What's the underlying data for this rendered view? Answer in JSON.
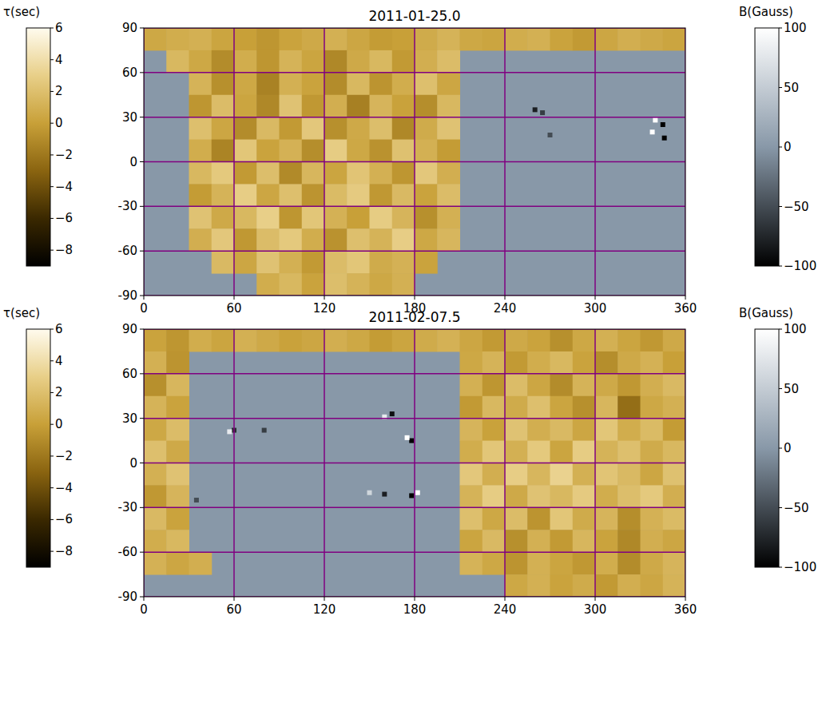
{
  "chart_data": [
    {
      "type": "heatmap",
      "title": "2011-01-25.0",
      "xlim": [
        0,
        360
      ],
      "ylim": [
        -90,
        90
      ],
      "xticks": [
        0,
        60,
        120,
        180,
        240,
        300,
        360
      ],
      "yticks": [
        -90,
        -60,
        -30,
        0,
        30,
        60,
        90
      ],
      "grid": true,
      "x": [
        7.5,
        22.5,
        37.5,
        52.5,
        67.5,
        82.5,
        97.5,
        112.5,
        127.5,
        142.5,
        157.5,
        172.5,
        187.5,
        202.5,
        217.5,
        232.5,
        247.5,
        262.5,
        277.5,
        292.5,
        307.5,
        322.5,
        337.5,
        352.5
      ],
      "y": [
        82.5,
        67.5,
        52.5,
        37.5,
        22.5,
        7.5,
        -7.5,
        -22.5,
        -37.5,
        -52.5,
        -67.5,
        -82.5
      ],
      "cells": [
        [
          0.5,
          0.8,
          1,
          0.3,
          0,
          -0.5,
          0.2,
          0.6,
          1,
          0.4,
          -0.2,
          0,
          0.7,
          1.2,
          0.5,
          0.3,
          0.8,
          1,
          0.2,
          -0.3,
          0.4,
          0.9,
          0.6,
          0.3
        ],
        [
          null,
          1.5,
          0.5,
          -1,
          0.8,
          -0.5,
          1.2,
          0.3,
          -1.2,
          0.6,
          1.5,
          -0.3,
          0.9,
          1.8,
          null,
          null,
          null,
          null,
          null,
          null,
          null,
          null,
          null,
          null
        ],
        [
          null,
          null,
          1.2,
          -0.8,
          0.5,
          -1.5,
          1.0,
          0.2,
          -1.0,
          1.5,
          -0.6,
          0.8,
          2.0,
          0.4,
          null,
          null,
          null,
          null,
          null,
          null,
          null,
          null,
          null,
          null
        ],
        [
          null,
          null,
          -0.5,
          1.8,
          0.3,
          -1.2,
          2.2,
          -0.4,
          0.9,
          -1.6,
          1.3,
          0.1,
          -0.9,
          1.5,
          null,
          null,
          null,
          null,
          null,
          null,
          null,
          null,
          null,
          null
        ],
        [
          null,
          null,
          2.0,
          0.4,
          -1.0,
          1.6,
          -0.3,
          2.5,
          -0.8,
          0.6,
          1.9,
          -1.2,
          0.7,
          2.2,
          null,
          null,
          null,
          null,
          null,
          null,
          null,
          null,
          null,
          null
        ],
        [
          null,
          null,
          0.8,
          -1.4,
          2.4,
          0.2,
          1.1,
          -0.9,
          2.8,
          0.5,
          -0.7,
          2.1,
          1.0,
          -0.2,
          null,
          null,
          null,
          null,
          null,
          null,
          null,
          null,
          null,
          null
        ],
        [
          null,
          null,
          1.5,
          2.6,
          -0.3,
          1.9,
          -1.1,
          1.4,
          0.3,
          2.3,
          1.0,
          -0.5,
          2.5,
          0.9,
          null,
          null,
          null,
          null,
          null,
          null,
          null,
          null,
          null,
          null
        ],
        [
          null,
          null,
          -0.2,
          1.2,
          2.9,
          0.4,
          2.0,
          -0.6,
          1.7,
          2.7,
          -0.4,
          1.6,
          0.2,
          1.8,
          null,
          null,
          null,
          null,
          null,
          null,
          null,
          null,
          null,
          null
        ],
        [
          null,
          null,
          2.2,
          0.6,
          1.5,
          3.0,
          -0.5,
          2.4,
          1.1,
          0.0,
          2.8,
          1.3,
          -0.8,
          1.0,
          null,
          null,
          null,
          null,
          null,
          null,
          null,
          null,
          null,
          null
        ],
        [
          null,
          null,
          0.9,
          2.5,
          -0.4,
          1.8,
          2.6,
          0.8,
          -0.7,
          2.0,
          1.2,
          2.9,
          0.5,
          1.4,
          null,
          null,
          null,
          null,
          null,
          null,
          null,
          null,
          null,
          null
        ],
        [
          null,
          null,
          null,
          1.6,
          0.4,
          2.2,
          1.0,
          -0.3,
          1.8,
          2.4,
          0.7,
          1.1,
          0.2,
          null,
          null,
          null,
          null,
          null,
          null,
          null,
          null,
          null,
          null,
          null
        ],
        [
          null,
          null,
          null,
          null,
          null,
          0.8,
          1.5,
          0.2,
          1.9,
          1.2,
          0.5,
          1.0,
          null,
          null,
          null,
          null,
          null,
          null,
          null,
          null,
          null,
          null,
          null,
          null
        ]
      ],
      "colorbar": {
        "label": "τ(sec)",
        "range": [
          -9,
          6
        ],
        "ticks": [
          {
            "value": -8,
            "label": "−8"
          },
          {
            "value": -6,
            "label": "−6"
          },
          {
            "value": -4,
            "label": "−4"
          },
          {
            "value": -2,
            "label": "−2"
          },
          0,
          2,
          4,
          6
        ]
      },
      "points": {
        "lon": [
          340,
          345,
          346,
          338,
          260,
          265,
          270
        ],
        "lat": [
          28,
          25,
          16,
          20,
          35,
          33,
          18
        ],
        "values": [
          100,
          -100,
          -100,
          100,
          -80,
          -60,
          -50
        ]
      },
      "points_colorbar": {
        "label": "B(Gauss)",
        "range": [
          -100,
          100
        ],
        "ticks": [
          {
            "value": -100,
            "label": "−100"
          },
          {
            "value": -50,
            "label": "−50"
          },
          0,
          50,
          100
        ]
      }
    },
    {
      "type": "heatmap",
      "title": "2011-02-07.5",
      "xlim": [
        0,
        360
      ],
      "ylim": [
        -90,
        90
      ],
      "xticks": [
        0,
        60,
        120,
        180,
        240,
        300,
        360
      ],
      "yticks": [
        -90,
        -60,
        -30,
        0,
        30,
        60,
        90
      ],
      "grid": true,
      "x": [
        7.5,
        22.5,
        37.5,
        52.5,
        67.5,
        82.5,
        97.5,
        112.5,
        127.5,
        142.5,
        157.5,
        172.5,
        187.5,
        202.5,
        217.5,
        232.5,
        247.5,
        262.5,
        277.5,
        292.5,
        307.5,
        322.5,
        337.5,
        352.5
      ],
      "y": [
        82.5,
        67.5,
        52.5,
        37.5,
        22.5,
        7.5,
        -7.5,
        -22.5,
        -37.5,
        -52.5,
        -67.5,
        -82.5
      ],
      "cells": [
        [
          0.2,
          -0.5,
          0.8,
          0.3,
          1.0,
          0.6,
          0.1,
          0.4,
          0.9,
          0.5,
          -0.2,
          0.3,
          0.7,
          1.1,
          0.4,
          -0.3,
          0.6,
          0.2,
          -0.8,
          0.5,
          1.0,
          0.3,
          -0.4,
          0.6
        ],
        [
          1.0,
          -0.6,
          null,
          null,
          null,
          null,
          null,
          null,
          null,
          null,
          null,
          null,
          null,
          null,
          0.5,
          1.2,
          -0.3,
          0.8,
          1.5,
          0.2,
          -0.9,
          0.6,
          1.1,
          0.0
        ],
        [
          -0.8,
          1.4,
          null,
          null,
          null,
          null,
          null,
          null,
          null,
          null,
          null,
          null,
          null,
          null,
          1.0,
          -0.5,
          1.8,
          0.4,
          -1.0,
          1.2,
          0.6,
          -0.4,
          0.9,
          1.6
        ],
        [
          1.2,
          0.2,
          null,
          null,
          null,
          null,
          null,
          null,
          null,
          null,
          null,
          null,
          null,
          null,
          -0.3,
          1.5,
          0.7,
          2.0,
          0.3,
          -0.8,
          1.4,
          -2.5,
          0.5,
          1.0
        ],
        [
          0.5,
          1.8,
          null,
          null,
          null,
          null,
          null,
          null,
          null,
          null,
          null,
          null,
          null,
          null,
          1.3,
          0.1,
          2.2,
          0.9,
          1.6,
          0.4,
          2.4,
          0.8,
          1.7,
          -0.2
        ],
        [
          2.0,
          0.6,
          null,
          null,
          null,
          null,
          null,
          null,
          null,
          null,
          null,
          null,
          null,
          null,
          0.8,
          2.4,
          1.0,
          2.6,
          0.3,
          2.8,
          1.2,
          2.0,
          0.7,
          1.5
        ],
        [
          1.0,
          2.2,
          null,
          null,
          null,
          null,
          null,
          null,
          null,
          null,
          null,
          null,
          null,
          null,
          2.5,
          0.9,
          2.9,
          1.4,
          3.2,
          1.0,
          2.3,
          1.6,
          0.4,
          2.1
        ],
        [
          -0.4,
          1.3,
          null,
          null,
          null,
          null,
          null,
          null,
          null,
          null,
          null,
          null,
          null,
          null,
          1.2,
          2.8,
          0.6,
          2.2,
          1.5,
          2.7,
          0.8,
          1.9,
          2.6,
          0.9
        ],
        [
          1.6,
          0.2,
          null,
          null,
          null,
          null,
          null,
          null,
          null,
          null,
          null,
          null,
          null,
          null,
          2.0,
          0.5,
          1.8,
          -0.6,
          2.4,
          0.7,
          1.3,
          -0.9,
          1.1,
          1.7
        ],
        [
          0.8,
          1.5,
          null,
          null,
          null,
          null,
          null,
          null,
          null,
          null,
          null,
          null,
          null,
          null,
          0.3,
          1.6,
          -0.8,
          1.0,
          -0.3,
          1.4,
          0.2,
          -1.2,
          0.9,
          0.4
        ],
        [
          1.1,
          0.4,
          0.9,
          null,
          null,
          null,
          null,
          null,
          null,
          null,
          null,
          null,
          null,
          null,
          1.2,
          0.5,
          -0.6,
          1.0,
          0.3,
          -0.4,
          0.8,
          -1.0,
          0.6,
          1.3
        ],
        [
          null,
          null,
          null,
          null,
          null,
          null,
          null,
          null,
          null,
          null,
          null,
          null,
          null,
          null,
          null,
          null,
          0.5,
          1.0,
          0.2,
          0.7,
          -0.3,
          0.9,
          0.4,
          1.2
        ]
      ],
      "colorbar": {
        "label": "τ(sec)",
        "range": [
          -9,
          6
        ],
        "ticks": [
          {
            "value": -8,
            "label": "−8"
          },
          {
            "value": -6,
            "label": "−6"
          },
          {
            "value": -4,
            "label": "−4"
          },
          {
            "value": -2,
            "label": "−2"
          },
          0,
          2,
          4,
          6
        ]
      },
      "points": {
        "lon": [
          178,
          175,
          165,
          160,
          178,
          182,
          160,
          150,
          60,
          57,
          80,
          35
        ],
        "lat": [
          15,
          17,
          33,
          31,
          -22,
          -20,
          -21,
          -20,
          22,
          21,
          22,
          -25
        ],
        "values": [
          -100,
          100,
          -90,
          80,
          -100,
          100,
          -80,
          60,
          -70,
          80,
          -60,
          -50
        ]
      },
      "points_colorbar": {
        "label": "B(Gauss)",
        "range": [
          -100,
          100
        ],
        "ticks": [
          {
            "value": -100,
            "label": "−100"
          },
          {
            "value": -50,
            "label": "−50"
          },
          0,
          50,
          100
        ]
      }
    }
  ]
}
